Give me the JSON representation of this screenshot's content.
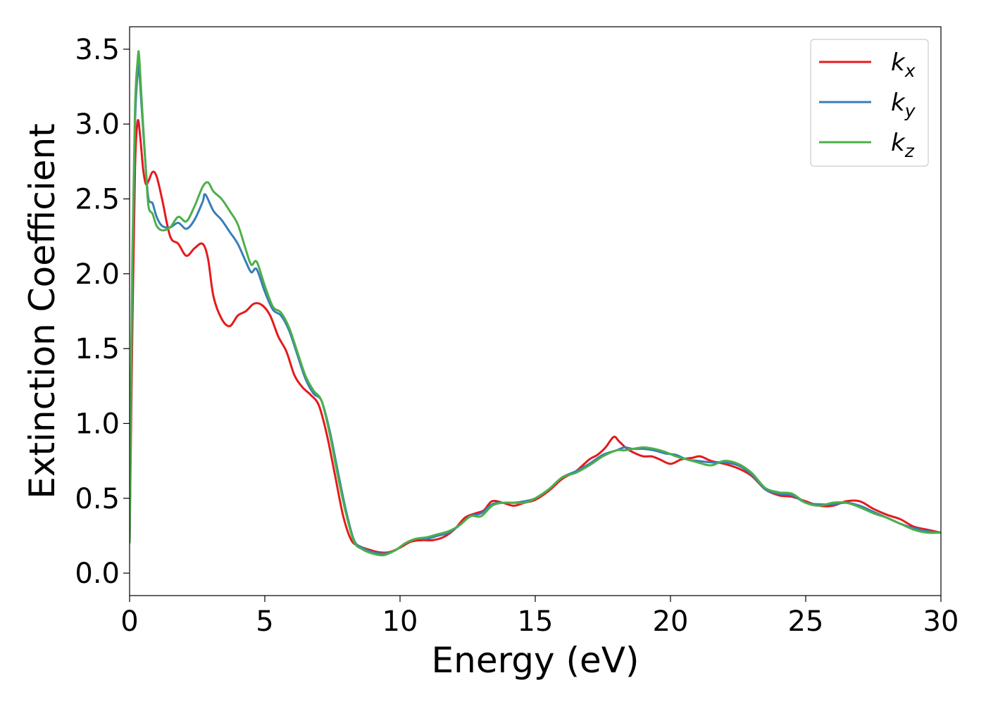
{
  "chart_data": {
    "type": "line",
    "title": "",
    "xlabel": "Energy (eV)",
    "ylabel": "Extinction Coefficient",
    "xlim": [
      0,
      30
    ],
    "ylim": [
      -0.15,
      3.65
    ],
    "xticks": [
      0,
      5,
      10,
      15,
      20,
      25,
      30
    ],
    "xtick_labels": [
      "0",
      "5",
      "10",
      "15",
      "20",
      "25",
      "30"
    ],
    "yticks": [
      0.0,
      0.5,
      1.0,
      1.5,
      2.0,
      2.5,
      3.0,
      3.5
    ],
    "ytick_labels": [
      "0.0",
      "0.5",
      "1.0",
      "1.5",
      "2.0",
      "2.5",
      "3.0",
      "3.5"
    ],
    "grid": false,
    "legend_position": "top-right",
    "series": [
      {
        "name": "k",
        "subscript": "x",
        "color": "#e41a1c",
        "x": [
          0,
          0.1,
          0.2,
          0.3,
          0.4,
          0.5,
          0.6,
          0.7,
          0.85,
          1.0,
          1.2,
          1.5,
          1.8,
          2.1,
          2.4,
          2.7,
          2.9,
          3.1,
          3.4,
          3.7,
          4.0,
          4.3,
          4.6,
          4.9,
          5.2,
          5.5,
          5.8,
          6.1,
          6.4,
          6.7,
          7.0,
          7.3,
          7.6,
          7.9,
          8.2,
          8.5,
          8.8,
          9.2,
          9.6,
          10.0,
          10.4,
          10.8,
          11.2,
          11.6,
          12.0,
          12.4,
          12.8,
          13.1,
          13.4,
          13.8,
          14.2,
          14.6,
          15.0,
          15.5,
          16.0,
          16.5,
          17.0,
          17.3,
          17.6,
          17.9,
          18.1,
          18.4,
          18.7,
          19.0,
          19.3,
          19.6,
          20.0,
          20.4,
          20.8,
          21.1,
          21.5,
          22.0,
          22.5,
          23.0,
          23.5,
          24.0,
          24.5,
          25.0,
          25.5,
          26.0,
          26.5,
          27.0,
          27.5,
          28.0,
          28.5,
          29.0,
          29.5,
          30.0
        ],
        "y": [
          0.2,
          1.6,
          2.7,
          3.02,
          2.9,
          2.7,
          2.6,
          2.62,
          2.68,
          2.65,
          2.5,
          2.25,
          2.2,
          2.12,
          2.17,
          2.2,
          2.1,
          1.85,
          1.7,
          1.65,
          1.72,
          1.75,
          1.8,
          1.79,
          1.72,
          1.58,
          1.48,
          1.32,
          1.24,
          1.19,
          1.12,
          0.92,
          0.65,
          0.38,
          0.22,
          0.18,
          0.16,
          0.14,
          0.14,
          0.17,
          0.21,
          0.22,
          0.22,
          0.24,
          0.29,
          0.37,
          0.4,
          0.42,
          0.48,
          0.47,
          0.45,
          0.47,
          0.49,
          0.55,
          0.63,
          0.68,
          0.76,
          0.79,
          0.84,
          0.91,
          0.88,
          0.83,
          0.8,
          0.78,
          0.78,
          0.76,
          0.73,
          0.76,
          0.77,
          0.78,
          0.75,
          0.73,
          0.7,
          0.65,
          0.56,
          0.52,
          0.51,
          0.48,
          0.45,
          0.45,
          0.48,
          0.48,
          0.43,
          0.39,
          0.36,
          0.31,
          0.29,
          0.27
        ]
      },
      {
        "name": "k",
        "subscript": "y",
        "color": "#377eb8",
        "x": [
          0,
          0.1,
          0.2,
          0.3,
          0.35,
          0.45,
          0.6,
          0.7,
          0.85,
          1.0,
          1.2,
          1.5,
          1.8,
          2.1,
          2.4,
          2.7,
          2.8,
          3.1,
          3.4,
          3.7,
          4.0,
          4.3,
          4.5,
          4.7,
          5.0,
          5.3,
          5.6,
          5.9,
          6.2,
          6.5,
          6.8,
          7.1,
          7.4,
          7.7,
          8.0,
          8.3,
          8.6,
          9.0,
          9.4,
          9.8,
          10.2,
          10.6,
          11.0,
          11.4,
          11.8,
          12.2,
          12.6,
          13.0,
          13.4,
          13.8,
          14.2,
          14.6,
          15.0,
          15.5,
          16.0,
          16.5,
          17.0,
          17.5,
          18.0,
          18.3,
          18.6,
          19.0,
          19.4,
          19.8,
          20.2,
          20.6,
          21.0,
          21.5,
          22.0,
          22.5,
          23.0,
          23.5,
          24.0,
          24.5,
          25.0,
          25.5,
          26.0,
          26.5,
          27.0,
          27.5,
          28.0,
          28.5,
          29.0,
          29.5,
          30.0
        ],
        "y": [
          0.2,
          2.0,
          3.0,
          3.35,
          3.37,
          3.1,
          2.7,
          2.5,
          2.47,
          2.38,
          2.32,
          2.31,
          2.34,
          2.3,
          2.36,
          2.48,
          2.53,
          2.42,
          2.36,
          2.28,
          2.2,
          2.08,
          2.01,
          2.03,
          1.88,
          1.76,
          1.72,
          1.62,
          1.46,
          1.3,
          1.2,
          1.15,
          0.95,
          0.68,
          0.42,
          0.22,
          0.17,
          0.14,
          0.13,
          0.15,
          0.2,
          0.23,
          0.23,
          0.25,
          0.27,
          0.32,
          0.38,
          0.4,
          0.46,
          0.47,
          0.47,
          0.48,
          0.5,
          0.56,
          0.64,
          0.68,
          0.73,
          0.79,
          0.82,
          0.84,
          0.83,
          0.83,
          0.82,
          0.8,
          0.79,
          0.76,
          0.75,
          0.74,
          0.74,
          0.72,
          0.66,
          0.56,
          0.53,
          0.52,
          0.47,
          0.46,
          0.46,
          0.47,
          0.45,
          0.41,
          0.37,
          0.33,
          0.3,
          0.28,
          0.27
        ]
      },
      {
        "name": "k",
        "subscript": "z",
        "color": "#4daf4a",
        "x": [
          0,
          0.1,
          0.2,
          0.3,
          0.35,
          0.45,
          0.6,
          0.7,
          0.85,
          1.0,
          1.2,
          1.5,
          1.8,
          2.1,
          2.4,
          2.7,
          2.9,
          3.1,
          3.4,
          3.7,
          4.0,
          4.3,
          4.5,
          4.7,
          5.0,
          5.3,
          5.6,
          5.9,
          6.2,
          6.5,
          6.8,
          7.1,
          7.4,
          7.7,
          8.0,
          8.3,
          8.6,
          9.0,
          9.4,
          9.8,
          10.2,
          10.6,
          11.0,
          11.4,
          11.8,
          12.2,
          12.6,
          13.0,
          13.4,
          13.8,
          14.2,
          14.6,
          15.0,
          15.5,
          16.0,
          16.5,
          17.0,
          17.5,
          18.0,
          18.3,
          18.6,
          19.0,
          19.4,
          19.8,
          20.2,
          20.6,
          21.0,
          21.5,
          22.0,
          22.5,
          23.0,
          23.5,
          24.0,
          24.5,
          25.0,
          25.5,
          26.0,
          26.5,
          27.0,
          27.5,
          28.0,
          28.5,
          29.0,
          29.5,
          30.0
        ],
        "y": [
          0.2,
          2.1,
          3.1,
          3.43,
          3.46,
          3.15,
          2.7,
          2.45,
          2.4,
          2.32,
          2.29,
          2.31,
          2.38,
          2.35,
          2.45,
          2.58,
          2.61,
          2.55,
          2.5,
          2.42,
          2.33,
          2.16,
          2.06,
          2.08,
          1.92,
          1.78,
          1.74,
          1.64,
          1.48,
          1.32,
          1.22,
          1.15,
          0.93,
          0.65,
          0.4,
          0.21,
          0.16,
          0.13,
          0.12,
          0.15,
          0.2,
          0.23,
          0.24,
          0.26,
          0.28,
          0.32,
          0.38,
          0.38,
          0.45,
          0.47,
          0.47,
          0.47,
          0.5,
          0.56,
          0.64,
          0.67,
          0.72,
          0.78,
          0.82,
          0.82,
          0.83,
          0.84,
          0.83,
          0.81,
          0.78,
          0.76,
          0.74,
          0.72,
          0.75,
          0.73,
          0.67,
          0.57,
          0.54,
          0.53,
          0.47,
          0.45,
          0.47,
          0.47,
          0.44,
          0.4,
          0.37,
          0.33,
          0.29,
          0.27,
          0.27
        ]
      }
    ]
  }
}
